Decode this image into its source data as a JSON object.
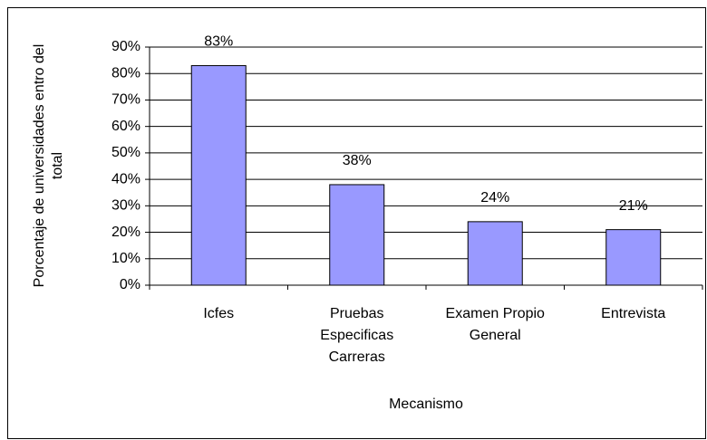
{
  "chart_data": {
    "type": "bar",
    "x_label": "Mecanismo",
    "y_label": "Porcentaje de universidades entro del total",
    "categories": [
      "Icfes",
      "Pruebas Especificas Carreras",
      "Examen Propio General",
      "Entrevista"
    ],
    "values": [
      83,
      38,
      24,
      21
    ],
    "value_labels": [
      "83%",
      "38%",
      "24%",
      "21%"
    ],
    "color": "#9999ff",
    "ylim": [
      0,
      90
    ],
    "yticks": [
      {
        "value": 0,
        "label": "0%"
      },
      {
        "value": 10,
        "label": "10%"
      },
      {
        "value": 20,
        "label": "20%"
      },
      {
        "value": 30,
        "label": "30%"
      },
      {
        "value": 40,
        "label": "40%"
      },
      {
        "value": 50,
        "label": "50%"
      },
      {
        "value": 60,
        "label": "60%"
      },
      {
        "value": 70,
        "label": "70%"
      },
      {
        "value": 80,
        "label": "80%"
      },
      {
        "value": 90,
        "label": "90%"
      }
    ],
    "grid": true
  }
}
